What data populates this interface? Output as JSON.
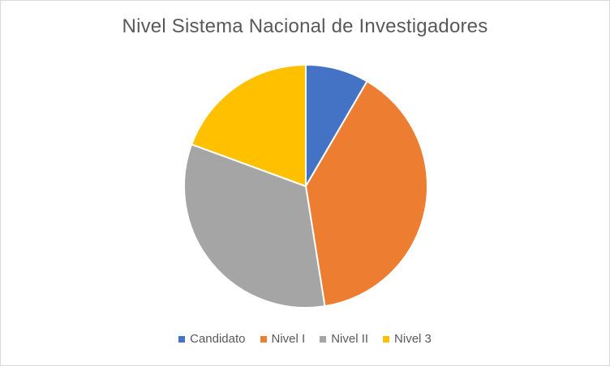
{
  "chart_data": {
    "type": "pie",
    "title": "Nivel Sistema Nacional de Investigadores",
    "categories": [
      "Candidato",
      "Nivel I",
      "Nivel II",
      "Nivel 3"
    ],
    "values": [
      8.4,
      39.1,
      33.1,
      19.4
    ],
    "colors": [
      "#4472c4",
      "#ed7d31",
      "#a5a5a5",
      "#ffc000"
    ],
    "start_angle_deg": 0,
    "direction": "clockwise",
    "legend_position": "bottom"
  }
}
